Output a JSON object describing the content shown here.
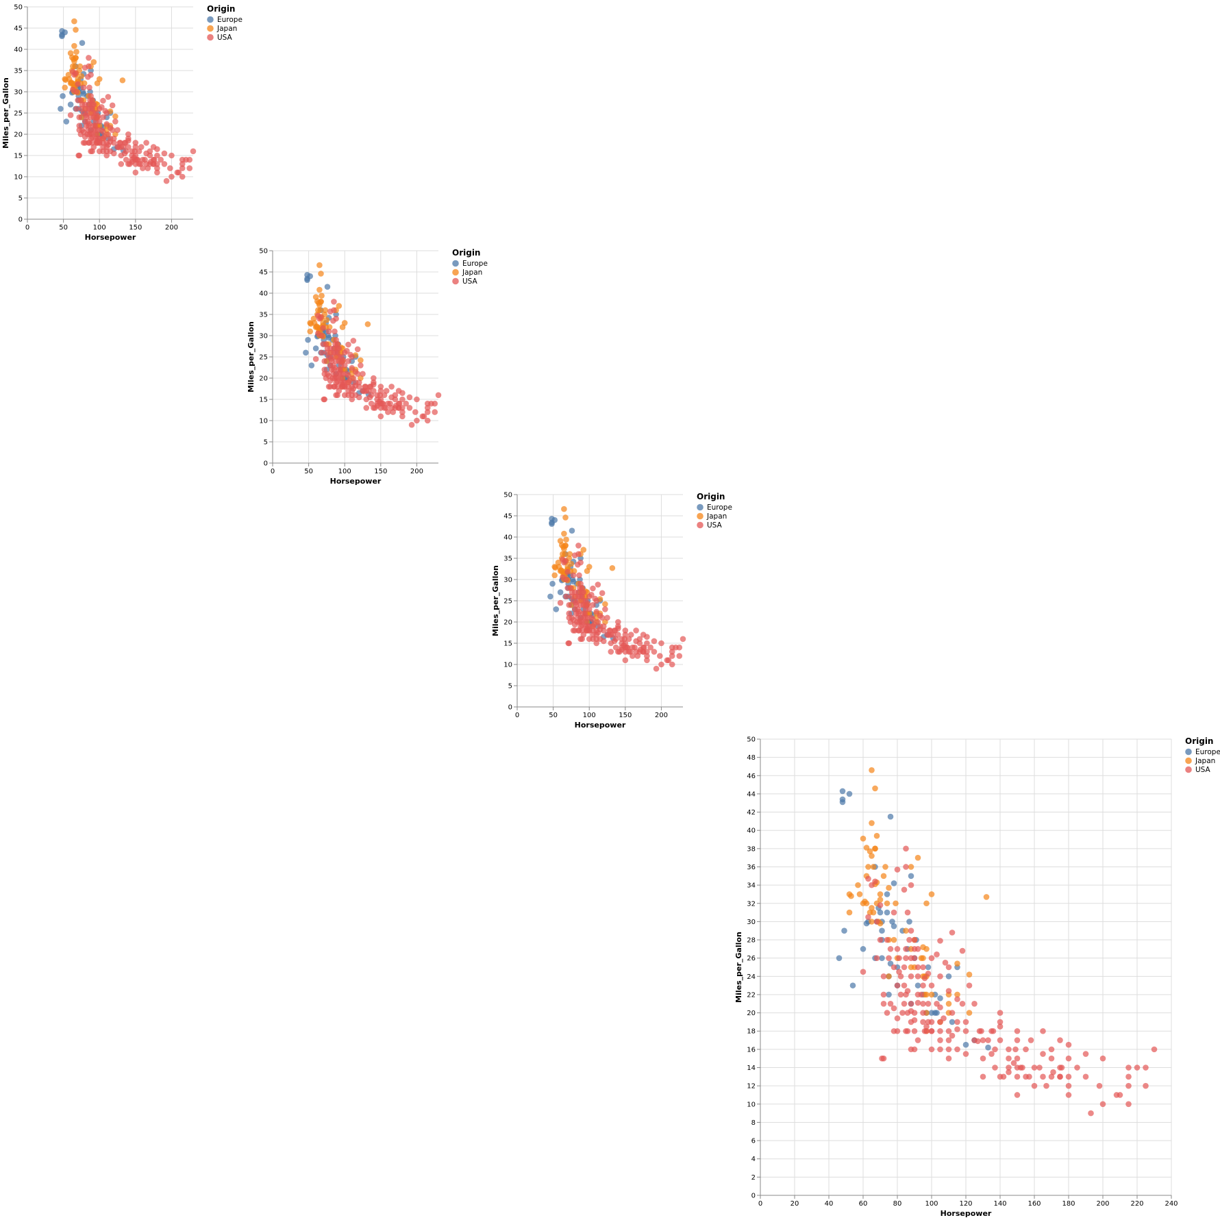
{
  "legend": {
    "title": "Origin",
    "items": [
      {
        "label": "Europe",
        "color": "#4c78a8"
      },
      {
        "label": "Japan",
        "color": "#f58518"
      },
      {
        "label": "USA",
        "color": "#e45756"
      }
    ]
  },
  "chart_data": [
    {
      "type": "scatter",
      "xlabel": "Horsepower",
      "ylabel": "Miles_per_Gallon",
      "xlim": [
        0,
        230
      ],
      "ylim": [
        0,
        50
      ],
      "xticks": [
        0,
        50,
        100,
        150,
        200
      ],
      "yticks": [
        0,
        5,
        10,
        15,
        20,
        25,
        30,
        35,
        40,
        45,
        50
      ],
      "grid": true,
      "legend": "top-right",
      "point_set": "cars"
    },
    {
      "type": "scatter",
      "xlabel": "Horsepower",
      "ylabel": "Miles_per_Gallon",
      "xlim": [
        0,
        230
      ],
      "ylim": [
        0,
        50
      ],
      "xticks": [
        0,
        50,
        100,
        150,
        200
      ],
      "yticks": [
        0,
        5,
        10,
        15,
        20,
        25,
        30,
        35,
        40,
        45,
        50
      ],
      "grid": true,
      "legend": "top-right",
      "point_set": "cars"
    },
    {
      "type": "scatter",
      "xlabel": "Horsepower",
      "ylabel": "Miles_per_Gallon",
      "xlim": [
        0,
        230
      ],
      "ylim": [
        0,
        50
      ],
      "xticks": [
        0,
        50,
        100,
        150,
        200
      ],
      "yticks": [
        0,
        5,
        10,
        15,
        20,
        25,
        30,
        35,
        40,
        45,
        50
      ],
      "grid": true,
      "legend": "top-right",
      "point_set": "cars"
    },
    {
      "type": "scatter",
      "xlabel": "Horsepower",
      "ylabel": "Miles_per_Gallon",
      "xlim": [
        0,
        240
      ],
      "ylim": [
        0,
        50
      ],
      "xticks": [
        0,
        20,
        40,
        60,
        80,
        100,
        120,
        140,
        160,
        180,
        200,
        220,
        240
      ],
      "yticks": [
        0,
        2,
        4,
        6,
        8,
        10,
        12,
        14,
        16,
        18,
        20,
        22,
        24,
        26,
        28,
        30,
        32,
        34,
        36,
        38,
        40,
        42,
        44,
        46,
        48,
        50
      ],
      "grid": true,
      "legend": "top-right",
      "point_set": "cars"
    }
  ],
  "points": {
    "Europe": [
      [
        46,
        26
      ],
      [
        48,
        43.1
      ],
      [
        48,
        44.3
      ],
      [
        48,
        43.4
      ],
      [
        52,
        44
      ],
      [
        49,
        29
      ],
      [
        54,
        23
      ],
      [
        60,
        27
      ],
      [
        67,
        36
      ],
      [
        71,
        29
      ],
      [
        71,
        26
      ],
      [
        71,
        30
      ],
      [
        63,
        30
      ],
      [
        76,
        41.5
      ],
      [
        67,
        26
      ],
      [
        69,
        31.5
      ],
      [
        74,
        33
      ],
      [
        75,
        24
      ],
      [
        70,
        31
      ],
      [
        77,
        30
      ],
      [
        78,
        34.2
      ],
      [
        78,
        29.5
      ],
      [
        80,
        25
      ],
      [
        83,
        29
      ],
      [
        86,
        27
      ],
      [
        88,
        35
      ],
      [
        90,
        26
      ],
      [
        92,
        23
      ],
      [
        100,
        20
      ],
      [
        102,
        20
      ],
      [
        103,
        20
      ],
      [
        110,
        24
      ],
      [
        112,
        19
      ],
      [
        115,
        25
      ],
      [
        120,
        16.5
      ],
      [
        125,
        17
      ],
      [
        133,
        16.2
      ],
      [
        88,
        21
      ],
      [
        95,
        22
      ],
      [
        102,
        22
      ],
      [
        87,
        30
      ],
      [
        91,
        28
      ],
      [
        75,
        22
      ],
      [
        74,
        31
      ],
      [
        76,
        25.4
      ],
      [
        97,
        20
      ],
      [
        105,
        21.6
      ],
      [
        98,
        25
      ],
      [
        71,
        28
      ],
      [
        80,
        23
      ],
      [
        62,
        29.8
      ],
      [
        68,
        30
      ]
    ],
    "Japan": [
      [
        65,
        46.6
      ],
      [
        67,
        44.6
      ],
      [
        60,
        39.1
      ],
      [
        65,
        40.8
      ],
      [
        68,
        39.4
      ],
      [
        62,
        38.1
      ],
      [
        64,
        37.7
      ],
      [
        67,
        38
      ],
      [
        65,
        37.2
      ],
      [
        62,
        35
      ],
      [
        88,
        36
      ],
      [
        92,
        37
      ],
      [
        97,
        32
      ],
      [
        100,
        33
      ],
      [
        132,
        32.7
      ],
      [
        52,
        33
      ],
      [
        53,
        32.8
      ],
      [
        58,
        33
      ],
      [
        61,
        32.2
      ],
      [
        65,
        31.5
      ],
      [
        68,
        32
      ],
      [
        70,
        32.4
      ],
      [
        75,
        33.7
      ],
      [
        67,
        34.1
      ],
      [
        70,
        33
      ],
      [
        88,
        27
      ],
      [
        90,
        28
      ],
      [
        95,
        27.2
      ],
      [
        97,
        27
      ],
      [
        97,
        24
      ],
      [
        110,
        22
      ],
      [
        122,
        24.2
      ],
      [
        65,
        30
      ],
      [
        70,
        29.8
      ],
      [
        75,
        28
      ],
      [
        80,
        26
      ],
      [
        95,
        26
      ],
      [
        88,
        25
      ],
      [
        75,
        24
      ],
      [
        68,
        34.3
      ],
      [
        100,
        22
      ],
      [
        72,
        35
      ],
      [
        63,
        36
      ],
      [
        52,
        31
      ],
      [
        57,
        34
      ],
      [
        60,
        32
      ],
      [
        64,
        31
      ],
      [
        66,
        36
      ],
      [
        69,
        30
      ],
      [
        85,
        29
      ],
      [
        94,
        26
      ],
      [
        96,
        22
      ],
      [
        96,
        24
      ],
      [
        97,
        18
      ],
      [
        97,
        22
      ],
      [
        97,
        20
      ],
      [
        110,
        21
      ],
      [
        115,
        22
      ],
      [
        122,
        20
      ],
      [
        78,
        28
      ],
      [
        67,
        38
      ],
      [
        73,
        36
      ],
      [
        79,
        32
      ],
      [
        74,
        32
      ],
      [
        62,
        32
      ],
      [
        66,
        31
      ],
      [
        90,
        25
      ],
      [
        95,
        24
      ],
      [
        105,
        19
      ],
      [
        115,
        25.4
      ],
      [
        110,
        20
      ]
    ],
    "USA": [
      [
        71,
        15
      ],
      [
        72,
        15
      ],
      [
        80,
        18
      ],
      [
        78,
        18
      ],
      [
        85,
        18
      ],
      [
        88,
        21
      ],
      [
        90,
        20
      ],
      [
        95,
        19
      ],
      [
        97,
        18
      ],
      [
        100,
        18
      ],
      [
        105,
        16
      ],
      [
        110,
        17
      ],
      [
        110,
        18
      ],
      [
        115,
        16
      ],
      [
        120,
        15.5
      ],
      [
        125,
        17
      ],
      [
        130,
        13
      ],
      [
        140,
        13
      ],
      [
        150,
        13
      ],
      [
        150,
        15
      ],
      [
        150,
        14
      ],
      [
        145,
        14
      ],
      [
        153,
        14
      ],
      [
        160,
        14
      ],
      [
        165,
        13
      ],
      [
        170,
        13
      ],
      [
        175,
        13
      ],
      [
        180,
        12
      ],
      [
        190,
        13
      ],
      [
        198,
        12
      ],
      [
        200,
        10
      ],
      [
        210,
        11
      ],
      [
        215,
        10
      ],
      [
        220,
        14
      ],
      [
        225,
        14
      ],
      [
        230,
        16
      ],
      [
        215,
        14
      ],
      [
        225,
        12
      ],
      [
        193,
        9
      ],
      [
        208,
        11
      ],
      [
        180,
        11
      ],
      [
        180,
        16.5
      ],
      [
        175,
        14
      ],
      [
        170,
        16
      ],
      [
        167,
        12
      ],
      [
        160,
        12
      ],
      [
        155,
        13
      ],
      [
        150,
        11
      ],
      [
        149,
        16
      ],
      [
        145,
        15
      ],
      [
        142,
        13
      ],
      [
        140,
        17
      ],
      [
        140,
        19
      ],
      [
        137,
        14
      ],
      [
        135,
        18
      ],
      [
        130,
        15
      ],
      [
        129,
        18
      ],
      [
        125,
        21
      ],
      [
        120,
        19
      ],
      [
        115,
        21.5
      ],
      [
        112,
        20
      ],
      [
        110,
        25
      ],
      [
        110,
        22.4
      ],
      [
        105,
        20.6
      ],
      [
        105,
        24
      ],
      [
        103,
        21
      ],
      [
        100,
        19
      ],
      [
        100,
        23
      ],
      [
        98,
        21
      ],
      [
        95,
        25
      ],
      [
        92,
        25
      ],
      [
        90,
        27
      ],
      [
        90,
        28
      ],
      [
        88,
        29
      ],
      [
        86,
        31
      ],
      [
        85,
        36
      ],
      [
        84,
        33.5
      ],
      [
        80,
        35.7
      ],
      [
        85,
        38
      ],
      [
        88,
        34
      ],
      [
        90,
        26
      ],
      [
        92,
        24
      ],
      [
        80,
        23
      ],
      [
        81,
        24.5
      ],
      [
        82,
        24
      ],
      [
        84,
        25
      ],
      [
        85,
        22
      ],
      [
        86,
        20
      ],
      [
        88,
        19
      ],
      [
        90,
        18
      ],
      [
        92,
        17
      ],
      [
        95,
        20
      ],
      [
        96,
        18
      ],
      [
        98,
        19
      ],
      [
        80,
        27
      ],
      [
        83,
        20
      ],
      [
        85,
        26
      ],
      [
        88,
        24
      ],
      [
        70,
        28
      ],
      [
        72,
        22
      ],
      [
        75,
        26
      ],
      [
        78,
        31
      ],
      [
        81,
        26
      ],
      [
        84,
        23
      ],
      [
        68,
        30
      ],
      [
        63,
        34.7
      ],
      [
        65,
        34
      ],
      [
        67,
        34.4
      ],
      [
        70,
        31.8
      ],
      [
        74,
        28
      ],
      [
        76,
        27
      ],
      [
        78,
        25
      ],
      [
        60,
        24.5
      ],
      [
        63,
        30.5
      ],
      [
        68,
        26
      ],
      [
        72,
        24
      ],
      [
        86,
        18
      ],
      [
        88,
        16
      ],
      [
        100,
        16
      ],
      [
        105,
        17
      ],
      [
        110,
        16
      ],
      [
        115,
        19
      ],
      [
        118,
        21
      ],
      [
        120,
        18
      ],
      [
        127,
        16.9
      ],
      [
        130,
        17
      ],
      [
        133,
        17
      ],
      [
        136,
        18
      ],
      [
        140,
        18.5
      ],
      [
        145,
        13.5
      ],
      [
        150,
        18
      ],
      [
        155,
        16
      ],
      [
        158,
        17
      ],
      [
        165,
        15.5
      ],
      [
        170,
        15
      ],
      [
        175,
        13
      ],
      [
        180,
        15
      ],
      [
        190,
        15.5
      ],
      [
        200,
        15
      ],
      [
        215,
        13
      ],
      [
        215,
        12
      ],
      [
        175,
        17
      ],
      [
        165,
        18
      ],
      [
        150,
        17
      ],
      [
        145,
        16
      ],
      [
        140,
        20
      ],
      [
        137,
        16
      ],
      [
        135,
        15.5
      ],
      [
        128,
        18
      ],
      [
        122,
        23
      ],
      [
        118,
        26.8
      ],
      [
        112,
        28.8
      ],
      [
        108,
        25.5
      ],
      [
        105,
        27.9
      ],
      [
        103,
        26.4
      ],
      [
        100,
        26
      ],
      [
        98,
        24.3
      ],
      [
        96,
        23.8
      ],
      [
        94,
        22
      ],
      [
        92,
        21.1
      ],
      [
        90,
        19.2
      ],
      [
        88,
        20.2
      ],
      [
        86,
        22.4
      ],
      [
        84,
        21
      ],
      [
        82,
        22
      ],
      [
        80,
        19.4
      ],
      [
        78,
        20.5
      ],
      [
        76,
        21
      ],
      [
        74,
        20
      ],
      [
        72,
        21
      ],
      [
        90,
        16
      ],
      [
        105,
        18
      ],
      [
        110,
        15
      ],
      [
        115,
        18.2
      ],
      [
        148,
        14.5
      ],
      [
        152,
        14
      ],
      [
        157,
        13
      ],
      [
        163,
        14
      ],
      [
        171,
        13.5
      ],
      [
        176,
        14
      ],
      [
        180,
        13
      ],
      [
        185,
        14
      ],
      [
        100,
        18
      ],
      [
        105,
        19
      ],
      [
        95,
        23
      ],
      [
        85,
        27
      ],
      [
        92,
        27
      ],
      [
        87,
        28
      ],
      [
        97,
        18.5
      ],
      [
        107,
        19.4
      ],
      [
        112,
        17.5
      ],
      [
        88,
        26
      ],
      [
        92,
        22
      ],
      [
        95,
        21
      ]
    ]
  }
}
